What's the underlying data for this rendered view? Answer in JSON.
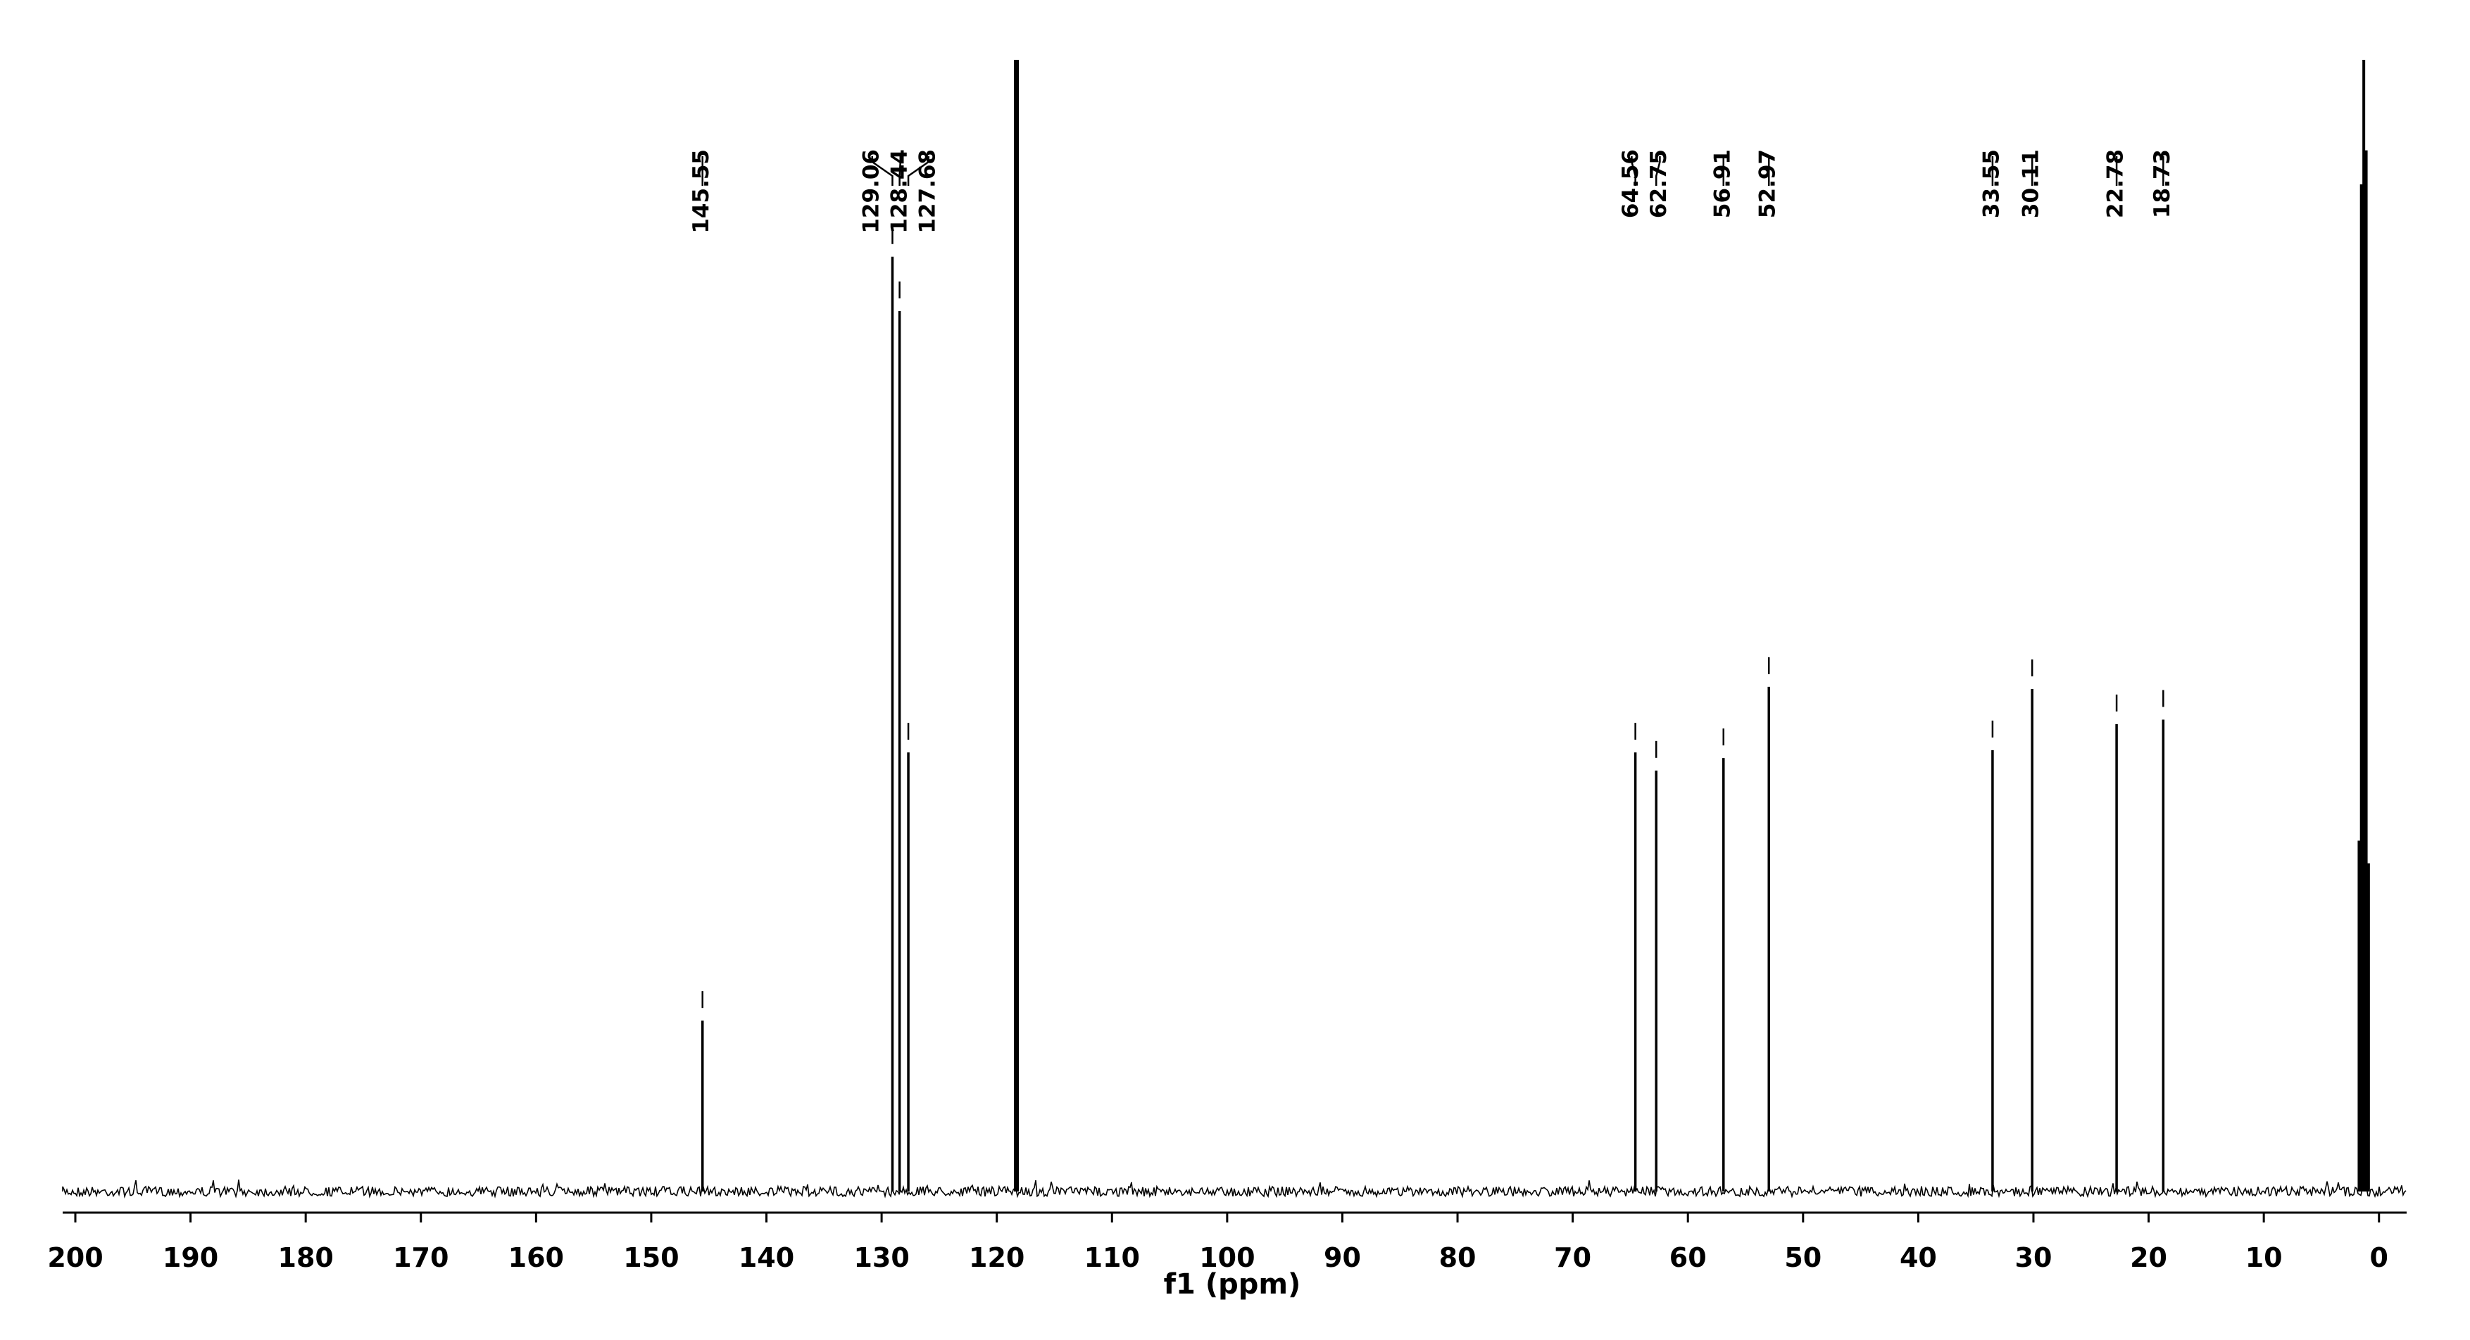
{
  "chart_data": {
    "type": "nmr",
    "xlabel": "f1 (ppm)",
    "x": [
      145.55,
      129.06,
      128.44,
      127.68,
      64.56,
      62.75,
      56.91,
      52.97,
      33.55,
      30.11,
      22.78,
      18.73
    ],
    "values": [
      15.1,
      82.6,
      77.8,
      38.8,
      38.8,
      37.2,
      38.3,
      44.6,
      39.0,
      44.4,
      41.3,
      41.7
    ],
    "unlabeled_peaks": {
      "x": [
        118.3,
        1.73,
        1.53,
        1.32,
        1.11,
        0.91
      ],
      "values": [
        100,
        31,
        89,
        100,
        92,
        29
      ]
    },
    "color": "#000000",
    "xlim": [
      201.1,
      -2.4
    ],
    "ylim": [
      0,
      100
    ],
    "xticks": [
      200,
      190,
      180,
      170,
      160,
      150,
      140,
      130,
      120,
      110,
      100,
      90,
      80,
      70,
      60,
      50,
      40,
      30,
      20,
      10,
      0
    ]
  }
}
